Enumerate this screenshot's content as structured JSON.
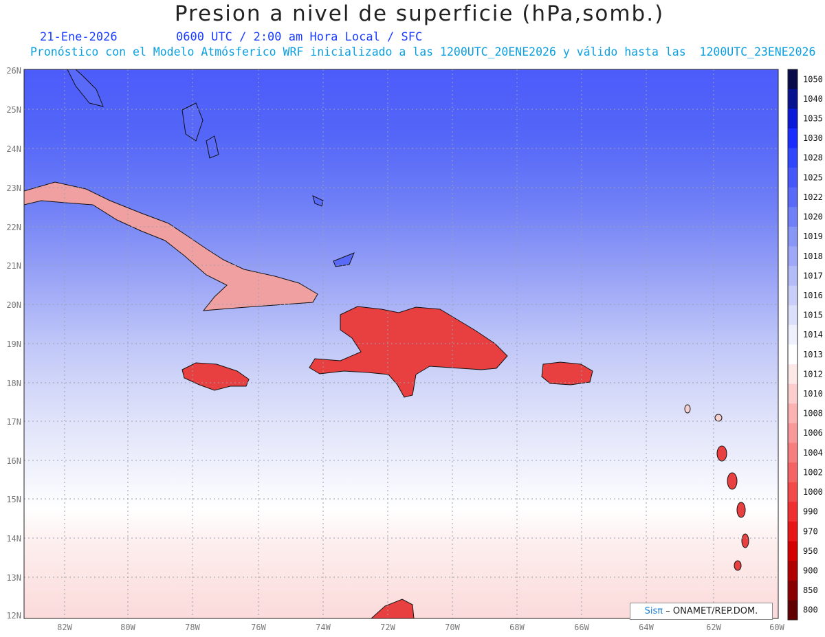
{
  "header": {
    "title": "Presion a nivel de superficie (hPa,somb.)",
    "date": "21-Ene-2026",
    "time": "0600 UTC / 2:00 am Hora Local / SFC",
    "model_line": "Pronóstico con el Modelo Atmósferico WRF inicializado a las 1200UTC_20ENE2026 y válido hasta las  1200UTC_23ENE2026"
  },
  "axes": {
    "lat_labels": [
      "26N",
      "25N",
      "24N",
      "23N",
      "22N",
      "21N",
      "20N",
      "19N",
      "18N",
      "17N",
      "16N",
      "15N",
      "14N",
      "13N",
      "12N"
    ],
    "lon_labels": [
      "82W",
      "80W",
      "78W",
      "76W",
      "74W",
      "72W",
      "70W",
      "68W",
      "66W",
      "64W",
      "62W",
      "60W"
    ]
  },
  "colorbar": {
    "levels": [
      "1050",
      "1040",
      "1035",
      "1030",
      "1028",
      "1025",
      "1022",
      "1020",
      "1019",
      "1018",
      "1017",
      "1016",
      "1015",
      "1014",
      "1013",
      "1012",
      "1010",
      "1008",
      "1006",
      "1004",
      "1002",
      "1000",
      "990",
      "970",
      "950",
      "900",
      "850",
      "800"
    ],
    "colors": [
      "#080a4a",
      "#061290",
      "#0a1ad8",
      "#1a2cff",
      "#3046ff",
      "#4658fa",
      "#5a6af8",
      "#7080f6",
      "#8896f6",
      "#9ea8f6",
      "#b4bcf8",
      "#c8cef8",
      "#dcdff9",
      "#eef0fc",
      "#ffffff",
      "#fde8e8",
      "#fccdcd",
      "#fab2b2",
      "#f89898",
      "#f67e7e",
      "#f46464",
      "#f24a4a",
      "#f03030",
      "#e81616",
      "#d40000",
      "#b00000",
      "#8a0000",
      "#600000"
    ]
  },
  "credit": {
    "logo": "Sisπ",
    "text": "– ONAMET/REP.DOM."
  }
}
